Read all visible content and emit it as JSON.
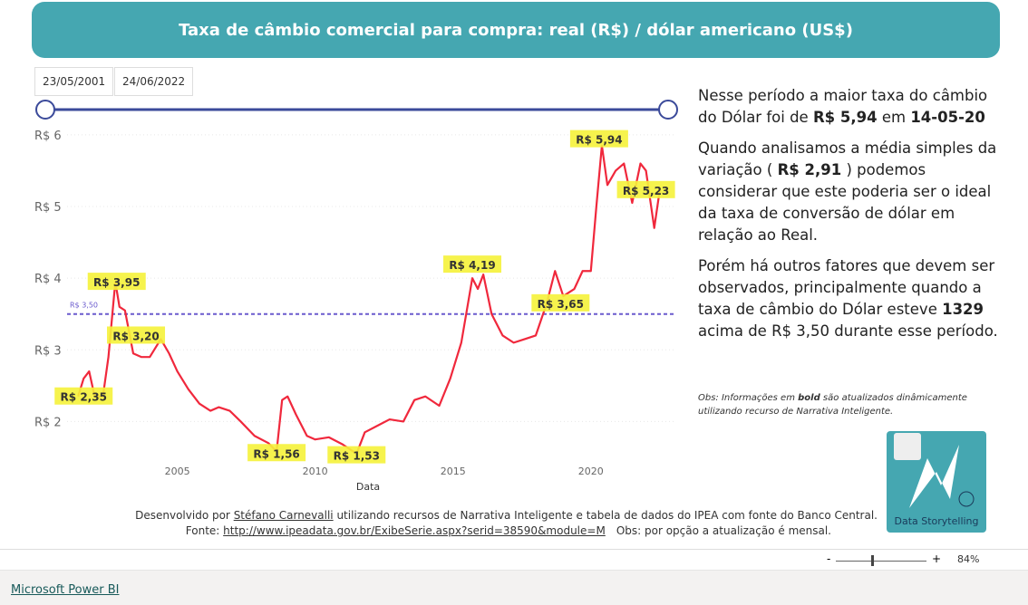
{
  "header": {
    "title": "Taxa de câmbio comercial para compra: real (R$) / dólar americano (US$)"
  },
  "slicer": {
    "start": "23/05/2001",
    "end": "24/06/2022"
  },
  "chart_data": {
    "type": "line",
    "x_label": "Data",
    "x": [
      2001.4,
      2001.6,
      2001.8,
      2002.0,
      2002.3,
      2002.5,
      2002.75,
      2002.9,
      2003.1,
      2003.4,
      2003.7,
      2004.0,
      2004.4,
      2004.7,
      2005.0,
      2005.4,
      2005.8,
      2006.2,
      2006.5,
      2006.9,
      2007.3,
      2007.8,
      2008.3,
      2008.6,
      2008.8,
      2009.0,
      2009.3,
      2009.7,
      2010.0,
      2010.5,
      2011.0,
      2011.5,
      2011.8,
      2012.3,
      2012.7,
      2013.2,
      2013.6,
      2014.0,
      2014.5,
      2014.9,
      2015.3,
      2015.7,
      2015.9,
      2016.1,
      2016.4,
      2016.8,
      2017.2,
      2017.6,
      2018.0,
      2018.4,
      2018.7,
      2019.0,
      2019.4,
      2019.7,
      2020.0,
      2020.2,
      2020.4,
      2020.6,
      2020.9,
      2021.2,
      2021.5,
      2021.8,
      2022.0,
      2022.3,
      2022.5
    ],
    "series": [
      {
        "color": "#f0283c",
        "values": [
          2.35,
          2.6,
          2.7,
          2.35,
          2.35,
          2.9,
          3.95,
          3.6,
          3.55,
          2.95,
          2.9,
          2.9,
          3.15,
          2.95,
          2.7,
          2.45,
          2.25,
          2.15,
          2.2,
          2.15,
          2.0,
          1.8,
          1.7,
          1.58,
          2.3,
          2.35,
          2.1,
          1.8,
          1.75,
          1.78,
          1.68,
          1.55,
          1.85,
          1.95,
          2.03,
          2.0,
          2.3,
          2.35,
          2.22,
          2.6,
          3.1,
          4.0,
          3.85,
          4.05,
          3.5,
          3.2,
          3.1,
          3.15,
          3.2,
          3.65,
          4.1,
          3.75,
          3.85,
          4.1,
          4.1,
          5.0,
          5.85,
          5.3,
          5.5,
          5.6,
          5.05,
          5.6,
          5.5,
          4.7,
          5.23
        ]
      }
    ],
    "xlim": [
      2001,
      2023
    ],
    "xticks": [
      2005,
      2010,
      2015,
      2020
    ],
    "ylim": [
      1.5,
      6.15
    ],
    "yticks": [
      {
        "value": 2,
        "label": "R$ 2"
      },
      {
        "value": 3,
        "label": "R$ 3"
      },
      {
        "value": 4,
        "label": "R$ 4"
      },
      {
        "value": 5,
        "label": "R$ 5"
      },
      {
        "value": 6,
        "label": "R$ 6"
      }
    ],
    "reference_line": {
      "value": 3.5,
      "label": "R$ 3,50",
      "color": "#6a5acd"
    },
    "annotations": [
      {
        "x": 2001.6,
        "y": 2.35,
        "label": "R$ 2,35"
      },
      {
        "x": 2002.8,
        "y": 3.95,
        "label": "R$ 3,95"
      },
      {
        "x": 2003.5,
        "y": 3.2,
        "label": "R$ 3,20"
      },
      {
        "x": 2008.6,
        "y": 1.56,
        "label": "R$ 1,56"
      },
      {
        "x": 2011.5,
        "y": 1.53,
        "label": "R$ 1,53"
      },
      {
        "x": 2015.7,
        "y": 4.19,
        "label": "R$ 4,19"
      },
      {
        "x": 2018.9,
        "y": 3.65,
        "label": "R$ 3,65"
      },
      {
        "x": 2020.3,
        "y": 5.94,
        "label": "R$ 5,94"
      },
      {
        "x": 2022.0,
        "y": 5.23,
        "label": "R$ 5,23"
      }
    ]
  },
  "narrative": {
    "paragraphs": [
      [
        {
          "text": "Nesse período a maior taxa do câmbio do Dólar foi de "
        },
        {
          "text": "R$ 5,94",
          "bold": true
        },
        {
          "text": " em "
        },
        {
          "text": "14-05-20",
          "bold": true
        }
      ],
      [
        {
          "text": "Quando analisamos a média simples da variação ( "
        },
        {
          "text": "R$ 2,91",
          "bold": true
        },
        {
          "text": " ) podemos considerar que este poderia ser o ideal da taxa de conversão de dólar em relação ao Real."
        }
      ],
      [
        {
          "text": "Porém há outros fatores que devem ser observados, principalmente quando a taxa de câmbio do Dólar esteve "
        },
        {
          "text": "1329",
          "bold": true
        },
        {
          "text": " acima de R$ 3,50 durante esse período."
        }
      ]
    ],
    "note_prefix": "Obs: Informações em ",
    "note_bold": "bold",
    "note_suffix": " são atualizados dinâmicamente utilizando recurso de Narrativa Inteligente."
  },
  "logo": {
    "label": "Data Storytelling"
  },
  "footer": {
    "line1_prefix": "Desenvolvido por ",
    "author": "Stéfano Carnevalli",
    "line1_suffix": " utilizando recursos de Narrativa Inteligente e tabela de dados do IPEA com fonte do Banco Central.",
    "source_prefix": "Fonte: ",
    "source_url": "http://www.ipeadata.gov.br/ExibeSerie.aspx?serid=38590&module=M",
    "source_note": "Obs: por opção a atualização é mensal."
  },
  "toolbar": {
    "zoom_out": "-",
    "zoom_in": "+",
    "zoom": "84%",
    "brand": "Microsoft Power BI"
  }
}
